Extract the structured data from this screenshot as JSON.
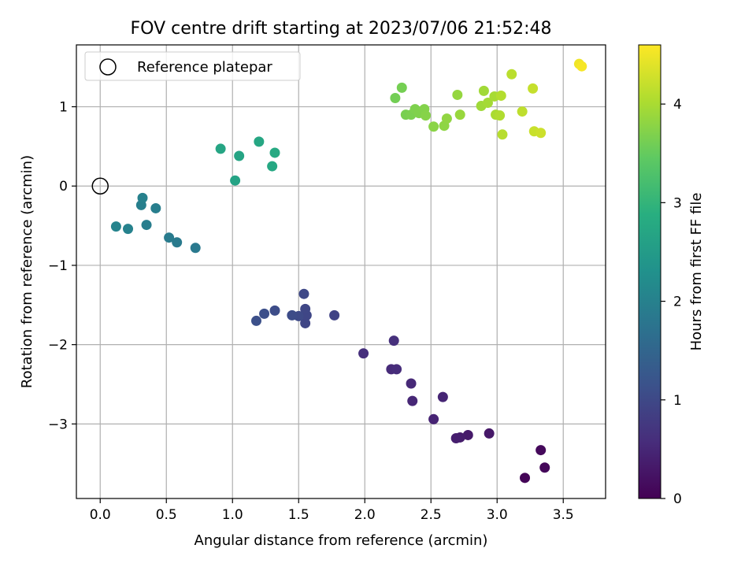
{
  "chart_data": {
    "type": "scatter",
    "title": "FOV centre drift starting at 2023/07/06 21:52:48",
    "xlabel": "Angular distance from reference (arcmin)",
    "ylabel": "Rotation from reference (arcmin)",
    "xlim": [
      -0.18,
      3.82
    ],
    "ylim": [
      -3.94,
      1.78
    ],
    "xticks": [
      0.0,
      0.5,
      1.0,
      1.5,
      2.0,
      2.5,
      3.0,
      3.5
    ],
    "xtick_labels": [
      "0.0",
      "0.5",
      "1.0",
      "1.5",
      "2.0",
      "2.5",
      "3.0",
      "3.5"
    ],
    "yticks": [
      -3,
      -2,
      -1,
      0,
      1
    ],
    "ytick_labels": [
      "−3",
      "−2",
      "−1",
      "0",
      "1"
    ],
    "grid": true,
    "legend": {
      "position": "top-left",
      "entries": [
        "Reference platepar"
      ]
    },
    "reference_point": {
      "x": 0.0,
      "y": 0.0
    },
    "colorbar": {
      "label": "Hours from first FF file",
      "min": 0,
      "max": 4.6,
      "ticks": [
        0,
        1,
        2,
        3,
        4
      ],
      "tick_labels": [
        "0",
        "1",
        "2",
        "3",
        "4"
      ],
      "colormap": "viridis"
    },
    "points": [
      {
        "x": 3.21,
        "y": -3.68,
        "h": 0.05
      },
      {
        "x": 3.36,
        "y": -3.55,
        "h": 0.08
      },
      {
        "x": 3.33,
        "y": -3.33,
        "h": 0.1
      },
      {
        "x": 2.94,
        "y": -3.12,
        "h": 0.3
      },
      {
        "x": 2.78,
        "y": -3.14,
        "h": 0.33
      },
      {
        "x": 2.72,
        "y": -3.17,
        "h": 0.36
      },
      {
        "x": 2.69,
        "y": -3.18,
        "h": 0.38
      },
      {
        "x": 2.52,
        "y": -2.94,
        "h": 0.45
      },
      {
        "x": 2.59,
        "y": -2.66,
        "h": 0.47
      },
      {
        "x": 2.36,
        "y": -2.71,
        "h": 0.5
      },
      {
        "x": 2.35,
        "y": -2.49,
        "h": 0.52
      },
      {
        "x": 2.2,
        "y": -2.31,
        "h": 0.55
      },
      {
        "x": 2.24,
        "y": -2.31,
        "h": 0.57
      },
      {
        "x": 1.99,
        "y": -2.11,
        "h": 0.6
      },
      {
        "x": 2.22,
        "y": -1.95,
        "h": 0.62
      },
      {
        "x": 1.77,
        "y": -1.63,
        "h": 0.92
      },
      {
        "x": 1.55,
        "y": -1.73,
        "h": 0.95
      },
      {
        "x": 1.56,
        "y": -1.63,
        "h": 0.97
      },
      {
        "x": 1.55,
        "y": -1.55,
        "h": 0.98
      },
      {
        "x": 1.54,
        "y": -1.36,
        "h": 1.0
      },
      {
        "x": 1.5,
        "y": -1.64,
        "h": 1.02
      },
      {
        "x": 1.45,
        "y": -1.63,
        "h": 1.05
      },
      {
        "x": 1.32,
        "y": -1.57,
        "h": 1.07
      },
      {
        "x": 1.24,
        "y": -1.61,
        "h": 1.1
      },
      {
        "x": 1.18,
        "y": -1.7,
        "h": 1.12
      },
      {
        "x": 0.72,
        "y": -0.78,
        "h": 1.85
      },
      {
        "x": 0.58,
        "y": -0.71,
        "h": 1.88
      },
      {
        "x": 0.52,
        "y": -0.65,
        "h": 1.9
      },
      {
        "x": 0.35,
        "y": -0.49,
        "h": 1.93
      },
      {
        "x": 0.42,
        "y": -0.28,
        "h": 1.95
      },
      {
        "x": 0.31,
        "y": -0.24,
        "h": 1.97
      },
      {
        "x": 0.32,
        "y": -0.15,
        "h": 2.0
      },
      {
        "x": 0.21,
        "y": -0.54,
        "h": 2.02
      },
      {
        "x": 0.12,
        "y": -0.51,
        "h": 2.05
      },
      {
        "x": 1.02,
        "y": 0.07,
        "h": 2.65
      },
      {
        "x": 1.05,
        "y": 0.38,
        "h": 2.68
      },
      {
        "x": 0.91,
        "y": 0.47,
        "h": 2.7
      },
      {
        "x": 1.2,
        "y": 0.56,
        "h": 2.72
      },
      {
        "x": 1.3,
        "y": 0.25,
        "h": 2.75
      },
      {
        "x": 1.32,
        "y": 0.42,
        "h": 2.77
      },
      {
        "x": 2.23,
        "y": 1.11,
        "h": 3.6
      },
      {
        "x": 2.28,
        "y": 1.24,
        "h": 3.62
      },
      {
        "x": 2.31,
        "y": 0.9,
        "h": 3.64
      },
      {
        "x": 2.35,
        "y": 0.9,
        "h": 3.66
      },
      {
        "x": 2.38,
        "y": 0.97,
        "h": 3.68
      },
      {
        "x": 2.41,
        "y": 0.92,
        "h": 3.7
      },
      {
        "x": 2.45,
        "y": 0.97,
        "h": 3.72
      },
      {
        "x": 2.46,
        "y": 0.89,
        "h": 3.74
      },
      {
        "x": 2.52,
        "y": 0.75,
        "h": 3.77
      },
      {
        "x": 2.6,
        "y": 0.76,
        "h": 3.8
      },
      {
        "x": 2.62,
        "y": 0.85,
        "h": 3.82
      },
      {
        "x": 2.7,
        "y": 1.15,
        "h": 3.85
      },
      {
        "x": 2.72,
        "y": 0.9,
        "h": 3.87
      },
      {
        "x": 2.88,
        "y": 1.01,
        "h": 3.92
      },
      {
        "x": 2.9,
        "y": 1.2,
        "h": 3.94
      },
      {
        "x": 2.93,
        "y": 1.05,
        "h": 3.96
      },
      {
        "x": 2.98,
        "y": 1.13,
        "h": 3.98
      },
      {
        "x": 2.99,
        "y": 0.9,
        "h": 4.0
      },
      {
        "x": 3.02,
        "y": 0.89,
        "h": 4.05
      },
      {
        "x": 3.03,
        "y": 1.14,
        "h": 4.07
      },
      {
        "x": 3.04,
        "y": 0.65,
        "h": 4.1
      },
      {
        "x": 3.11,
        "y": 1.41,
        "h": 4.12
      },
      {
        "x": 3.19,
        "y": 0.94,
        "h": 4.15
      },
      {
        "x": 3.27,
        "y": 1.23,
        "h": 4.2
      },
      {
        "x": 3.28,
        "y": 0.69,
        "h": 4.22
      },
      {
        "x": 3.33,
        "y": 0.67,
        "h": 4.25
      },
      {
        "x": 3.62,
        "y": 1.54,
        "h": 4.5
      },
      {
        "x": 3.64,
        "y": 1.51,
        "h": 4.55
      }
    ]
  }
}
